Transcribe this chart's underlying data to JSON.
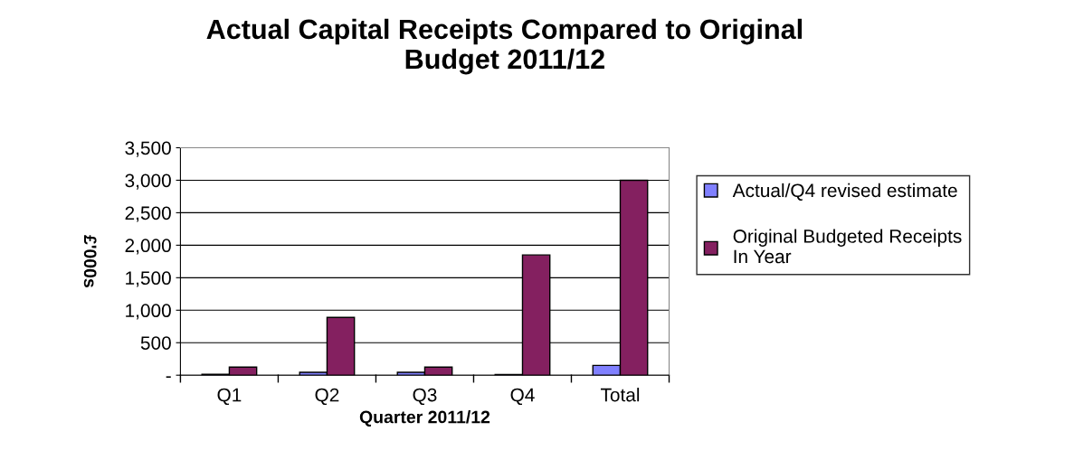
{
  "chart_data": {
    "type": "bar",
    "title": "Actual Capital Receipts Compared to Original\nBudget 2011/12",
    "xlabel": "Quarter 2011/12",
    "ylabel": "£'000s",
    "categories": [
      "Q1",
      "Q2",
      "Q3",
      "Q4",
      "Total"
    ],
    "series": [
      {
        "name": "Actual/Q4 revised estimate",
        "color": "#8080ff",
        "values": [
          15,
          45,
          45,
          10,
          150
        ]
      },
      {
        "name": "Original Budgeted Receipts\nIn Year",
        "color": "#842060",
        "values": [
          125,
          890,
          125,
          1850,
          3000
        ]
      }
    ],
    "ylim": [
      0,
      3500
    ],
    "yticks": [
      {
        "value": 0,
        "label": "-"
      },
      {
        "value": 500,
        "label": "500"
      },
      {
        "value": 1000,
        "label": "1,000"
      },
      {
        "value": 1500,
        "label": "1,500"
      },
      {
        "value": 2000,
        "label": "2,000"
      },
      {
        "value": 2500,
        "label": "2,500"
      },
      {
        "value": 3000,
        "label": "3,000"
      },
      {
        "value": 3500,
        "label": "3,500"
      }
    ],
    "grid": "y",
    "legend": "right"
  }
}
